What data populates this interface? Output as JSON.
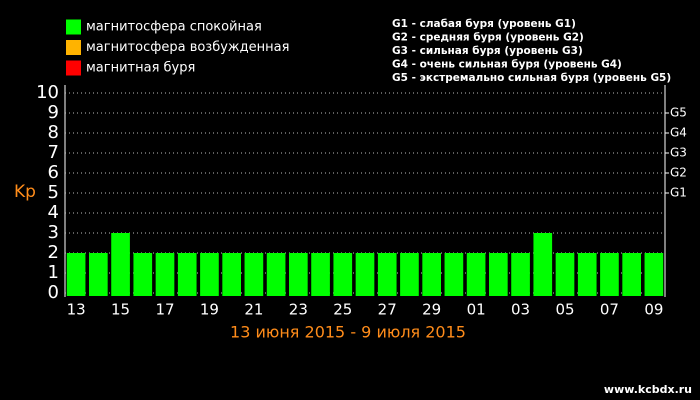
{
  "chart_data": {
    "type": "bar",
    "y_label": "Kp",
    "subtitle": "13 июня 2015 - 9 июля 2015",
    "watermark": "www.kcbdx.ru",
    "legend": [
      {
        "label": "магнитосфера спокойная",
        "color": "#00ff00"
      },
      {
        "label": "магнитосфера возбужденная",
        "color": "#ffb300"
      },
      {
        "label": "магнитная буря",
        "color": "#ff0000"
      }
    ],
    "levels": [
      "G1 - слабая буря (уровень G1)",
      "G2 - средняя буря (уровень G2)",
      "G3 - сильная буря (уровень G3)",
      "G4 - очень сильная буря (уровень G4)",
      "G5 - экстремально сильная буря (уровень G5)"
    ],
    "categories": [
      "13",
      null,
      "15",
      null,
      "17",
      null,
      "19",
      null,
      "21",
      null,
      "23",
      null,
      "25",
      null,
      "27",
      null,
      "29",
      null,
      "01",
      null,
      "03",
      null,
      "05",
      null,
      "07",
      null,
      "09"
    ],
    "values": [
      2,
      2,
      3,
      2,
      2,
      2,
      2,
      2,
      2,
      2,
      2,
      2,
      2,
      2,
      2,
      2,
      2,
      2,
      2,
      2,
      2,
      3,
      2,
      2,
      2,
      2,
      2
    ],
    "color": "#00ff00",
    "ylim": [
      0,
      10
    ],
    "yticks": [
      0,
      1,
      2,
      3,
      4,
      5,
      6,
      7,
      8,
      9,
      10
    ],
    "y2lim": [
      0,
      10
    ],
    "y2ticks": [
      {
        "value": 5,
        "label": "G1"
      },
      {
        "value": 6,
        "label": "G2"
      },
      {
        "value": 7,
        "label": "G3"
      },
      {
        "value": 8,
        "label": "G4"
      },
      {
        "value": 9,
        "label": "G5"
      }
    ],
    "grid": true
  }
}
